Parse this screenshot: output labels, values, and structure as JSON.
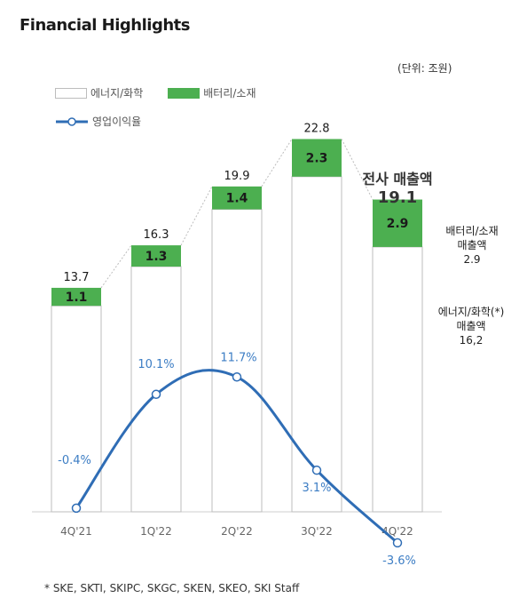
{
  "title": "Financial Highlights",
  "unit_note": "(단위: 조원)",
  "legend": {
    "energy": "에너지/화학",
    "battery": "배터리/소재",
    "margin": "영업이익율"
  },
  "total_label": {
    "line1": "전사 매출액",
    "line2": "19.1"
  },
  "battery_annotation": {
    "line1": "배터리/소재",
    "line2": "매출액",
    "line3": "2.9"
  },
  "energy_annotation": {
    "line1": "에너지/화학(*)",
    "line2": "매출액",
    "line3": "16,2"
  },
  "footnote": "* SKE, SKTI, SKIPC, SKGC, SKEN, SKEO, SKI Staff",
  "colors": {
    "battery": "#4caf50",
    "energy_fill": "#ffffff",
    "energy_border": "#bdbdbd",
    "line": "#2f6db5",
    "margin_text": "#3c7dc4"
  },
  "chart_data": {
    "type": "bar",
    "stacked": true,
    "categories": [
      "4Q'21",
      "1Q'22",
      "2Q'22",
      "3Q'22",
      "4Q'22"
    ],
    "series": [
      {
        "name": "에너지/화학",
        "values": [
          12.6,
          15.0,
          18.5,
          20.5,
          16.2
        ]
      },
      {
        "name": "배터리/소재",
        "values": [
          1.1,
          1.3,
          1.4,
          2.3,
          2.9
        ]
      }
    ],
    "totals": [
      "13.7",
      "16.3",
      "19.9",
      "22.8",
      "19.1"
    ],
    "battery_labels": [
      "1.1",
      "1.3",
      "1.4",
      "2.3",
      "2.9"
    ],
    "line_series": {
      "name": "영업이익율",
      "values": [
        -0.4,
        10.1,
        11.7,
        3.1,
        -3.6
      ],
      "labels": [
        "-0.4%",
        "10.1%",
        "11.7%",
        "3.1%",
        "-3.6%"
      ]
    },
    "ylim": [
      0,
      24
    ],
    "grid": false,
    "legend_position": "top-left"
  }
}
